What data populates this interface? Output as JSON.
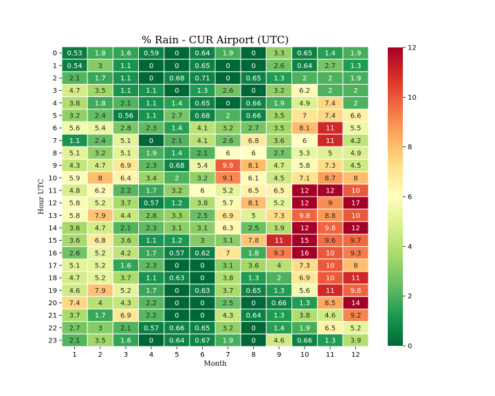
{
  "chart_data": {
    "type": "heatmap",
    "title": "% Rain - CUR Airport (UTC)",
    "xlabel": "Month",
    "ylabel": "Hour UTC",
    "x_categories": [
      "1",
      "2",
      "3",
      "4",
      "5",
      "6",
      "7",
      "8",
      "9",
      "10",
      "11",
      "12"
    ],
    "y_categories": [
      "0",
      "1",
      "2",
      "3",
      "4",
      "5",
      "6",
      "7",
      "8",
      "9",
      "10",
      "11",
      "12",
      "13",
      "14",
      "15",
      "16",
      "17",
      "18",
      "19",
      "20",
      "21",
      "22",
      "23"
    ],
    "color_range": [
      0,
      12
    ],
    "colorbar_ticks": [
      "0",
      "2",
      "4",
      "6",
      "8",
      "10",
      "12"
    ],
    "colormap": "RdYlGn_r",
    "cells": [
      [
        {
          "v": 0.53,
          "t": "0.53"
        },
        {
          "v": 1.8,
          "t": "1.8"
        },
        {
          "v": 1.6,
          "t": "1.6"
        },
        {
          "v": 0.59,
          "t": "0.59"
        },
        {
          "v": 0,
          "t": "0"
        },
        {
          "v": 0.64,
          "t": "0.64"
        },
        {
          "v": 1.9,
          "t": "1.9"
        },
        {
          "v": 0,
          "t": "0"
        },
        {
          "v": 3.3,
          "t": "3.3"
        },
        {
          "v": 0.65,
          "t": "0.65"
        },
        {
          "v": 1.4,
          "t": "1.4"
        },
        {
          "v": 1.9,
          "t": "1.9"
        }
      ],
      [
        {
          "v": 0.54,
          "t": "0.54"
        },
        {
          "v": 3,
          "t": "3"
        },
        {
          "v": 1.1,
          "t": "1.1"
        },
        {
          "v": 0,
          "t": "0"
        },
        {
          "v": 0,
          "t": "0"
        },
        {
          "v": 0.65,
          "t": "0.65"
        },
        {
          "v": 0,
          "t": "0"
        },
        {
          "v": 0,
          "t": "0"
        },
        {
          "v": 2.6,
          "t": "2.6"
        },
        {
          "v": 0.64,
          "t": "0.64"
        },
        {
          "v": 2.7,
          "t": "2.7"
        },
        {
          "v": 1.3,
          "t": "1.3"
        }
      ],
      [
        {
          "v": 2.1,
          "t": "2.1"
        },
        {
          "v": 1.7,
          "t": "1.7"
        },
        {
          "v": 1.1,
          "t": "1.1"
        },
        {
          "v": 0,
          "t": "0"
        },
        {
          "v": 0.68,
          "t": "0.68"
        },
        {
          "v": 0.71,
          "t": "0.71"
        },
        {
          "v": 0,
          "t": "0"
        },
        {
          "v": 0.65,
          "t": "0.65"
        },
        {
          "v": 1.3,
          "t": "1.3"
        },
        {
          "v": 2,
          "t": "2"
        },
        {
          "v": 2,
          "t": "2"
        },
        {
          "v": 1.9,
          "t": "1.9"
        }
      ],
      [
        {
          "v": 4.7,
          "t": "4.7"
        },
        {
          "v": 3.5,
          "t": "3.5"
        },
        {
          "v": 1.1,
          "t": "1.1"
        },
        {
          "v": 1.1,
          "t": "1.1"
        },
        {
          "v": 0,
          "t": "0"
        },
        {
          "v": 1.3,
          "t": "1.3"
        },
        {
          "v": 2.6,
          "t": "2.6"
        },
        {
          "v": 0,
          "t": "0"
        },
        {
          "v": 3.2,
          "t": "3.2"
        },
        {
          "v": 6.2,
          "t": "6.2"
        },
        {
          "v": 2,
          "t": "2"
        },
        {
          "v": 2,
          "t": "2"
        }
      ],
      [
        {
          "v": 3.8,
          "t": "3.8"
        },
        {
          "v": 1.8,
          "t": "1.8"
        },
        {
          "v": 2.1,
          "t": "2.1"
        },
        {
          "v": 1.1,
          "t": "1.1"
        },
        {
          "v": 1.4,
          "t": "1.4"
        },
        {
          "v": 0.65,
          "t": "0.65"
        },
        {
          "v": 0,
          "t": "0"
        },
        {
          "v": 0.66,
          "t": "0.66"
        },
        {
          "v": 1.9,
          "t": "1.9"
        },
        {
          "v": 4.9,
          "t": "4.9"
        },
        {
          "v": 7.4,
          "t": "7.4"
        },
        {
          "v": 2,
          "t": "2"
        }
      ],
      [
        {
          "v": 3.2,
          "t": "3.2"
        },
        {
          "v": 2.4,
          "t": "2.4"
        },
        {
          "v": 0.56,
          "t": "0.56"
        },
        {
          "v": 1.1,
          "t": "1.1"
        },
        {
          "v": 2.7,
          "t": "2.7"
        },
        {
          "v": 0.68,
          "t": "0.68"
        },
        {
          "v": 2,
          "t": "2"
        },
        {
          "v": 0.66,
          "t": "0.66"
        },
        {
          "v": 3.5,
          "t": "3.5"
        },
        {
          "v": 7,
          "t": "7"
        },
        {
          "v": 7.4,
          "t": "7.4"
        },
        {
          "v": 6.6,
          "t": "6.6"
        }
      ],
      [
        {
          "v": 5.6,
          "t": "5.6"
        },
        {
          "v": 5.4,
          "t": "5.4"
        },
        {
          "v": 2.8,
          "t": "2.8"
        },
        {
          "v": 2.3,
          "t": "2.3"
        },
        {
          "v": 1.4,
          "t": "1.4"
        },
        {
          "v": 4.1,
          "t": "4.1"
        },
        {
          "v": 3.2,
          "t": "3.2"
        },
        {
          "v": 2.7,
          "t": "2.7"
        },
        {
          "v": 3.5,
          "t": "3.5"
        },
        {
          "v": 8.1,
          "t": "8.1"
        },
        {
          "v": 11,
          "t": "11"
        },
        {
          "v": 5.5,
          "t": "5.5"
        }
      ],
      [
        {
          "v": 1.1,
          "t": "1.1"
        },
        {
          "v": 2.4,
          "t": "2.4"
        },
        {
          "v": 5.1,
          "t": "5.1"
        },
        {
          "v": 0,
          "t": "0"
        },
        {
          "v": 2.1,
          "t": "2.1"
        },
        {
          "v": 4.1,
          "t": "4.1"
        },
        {
          "v": 2.6,
          "t": "2.6"
        },
        {
          "v": 6.8,
          "t": "6.8"
        },
        {
          "v": 3.6,
          "t": "3.6"
        },
        {
          "v": 6,
          "t": "6"
        },
        {
          "v": 11,
          "t": "11"
        },
        {
          "v": 4.2,
          "t": "4.2"
        }
      ],
      [
        {
          "v": 5.1,
          "t": "5.1"
        },
        {
          "v": 3.2,
          "t": "3.2"
        },
        {
          "v": 5.1,
          "t": "5.1"
        },
        {
          "v": 1.9,
          "t": "1.9"
        },
        {
          "v": 1.4,
          "t": "1.4"
        },
        {
          "v": 2.1,
          "t": "2.1"
        },
        {
          "v": 6,
          "t": "6"
        },
        {
          "v": 6,
          "t": "6"
        },
        {
          "v": 2.7,
          "t": "2.7"
        },
        {
          "v": 5.3,
          "t": "5.3"
        },
        {
          "v": 5,
          "t": "5"
        },
        {
          "v": 4.9,
          "t": "4.9"
        }
      ],
      [
        {
          "v": 4.3,
          "t": "4.3"
        },
        {
          "v": 4.7,
          "t": "4.7"
        },
        {
          "v": 6.9,
          "t": "6.9"
        },
        {
          "v": 2.3,
          "t": "2.3"
        },
        {
          "v": 0.68,
          "t": "0.68"
        },
        {
          "v": 5.4,
          "t": "5.4"
        },
        {
          "v": 9.9,
          "t": "9.9"
        },
        {
          "v": 8.1,
          "t": "8.1"
        },
        {
          "v": 4.7,
          "t": "4.7"
        },
        {
          "v": 5.8,
          "t": "5.8"
        },
        {
          "v": 7.3,
          "t": "7.3"
        },
        {
          "v": 4.5,
          "t": "4.5"
        }
      ],
      [
        {
          "v": 5.9,
          "t": "5.9"
        },
        {
          "v": 8,
          "t": "8"
        },
        {
          "v": 6.4,
          "t": "6.4"
        },
        {
          "v": 3.4,
          "t": "3.4"
        },
        {
          "v": 2,
          "t": "2"
        },
        {
          "v": 3.2,
          "t": "3.2"
        },
        {
          "v": 9.1,
          "t": "9.1"
        },
        {
          "v": 6.1,
          "t": "6.1"
        },
        {
          "v": 4.5,
          "t": "4.5"
        },
        {
          "v": 7.1,
          "t": "7.1"
        },
        {
          "v": 8.7,
          "t": "8.7"
        },
        {
          "v": 8,
          "t": "8"
        }
      ],
      [
        {
          "v": 4.8,
          "t": "4.8"
        },
        {
          "v": 6.2,
          "t": "6.2"
        },
        {
          "v": 2.2,
          "t": "2.2"
        },
        {
          "v": 1.7,
          "t": "1.7"
        },
        {
          "v": 3.2,
          "t": "3.2"
        },
        {
          "v": 6,
          "t": "6"
        },
        {
          "v": 5.2,
          "t": "5.2"
        },
        {
          "v": 6.5,
          "t": "6.5"
        },
        {
          "v": 6.5,
          "t": "6.5"
        },
        {
          "v": 12,
          "t": "12"
        },
        {
          "v": 12,
          "t": "12"
        },
        {
          "v": 10,
          "t": "10"
        }
      ],
      [
        {
          "v": 5.8,
          "t": "5.8"
        },
        {
          "v": 5.2,
          "t": "5.2"
        },
        {
          "v": 3.7,
          "t": "3.7"
        },
        {
          "v": 0.57,
          "t": "0.57"
        },
        {
          "v": 1.2,
          "t": "1.2"
        },
        {
          "v": 3.8,
          "t": "3.8"
        },
        {
          "v": 5.7,
          "t": "5.7"
        },
        {
          "v": 8.1,
          "t": "8.1"
        },
        {
          "v": 5.2,
          "t": "5.2"
        },
        {
          "v": 12,
          "t": "12"
        },
        {
          "v": 9,
          "t": "9"
        },
        {
          "v": 17,
          "t": "17"
        }
      ],
      [
        {
          "v": 5.8,
          "t": "5.8"
        },
        {
          "v": 7.9,
          "t": "7.9"
        },
        {
          "v": 4.4,
          "t": "4.4"
        },
        {
          "v": 2.8,
          "t": "2.8"
        },
        {
          "v": 3.3,
          "t": "3.3"
        },
        {
          "v": 2.5,
          "t": "2.5"
        },
        {
          "v": 6.9,
          "t": "6.9"
        },
        {
          "v": 5,
          "t": "5"
        },
        {
          "v": 7.3,
          "t": "7.3"
        },
        {
          "v": 9.8,
          "t": "9.8"
        },
        {
          "v": 8.8,
          "t": "8.8"
        },
        {
          "v": 10,
          "t": "10"
        }
      ],
      [
        {
          "v": 3.6,
          "t": "3.6"
        },
        {
          "v": 4.7,
          "t": "4.7"
        },
        {
          "v": 2.1,
          "t": "2.1"
        },
        {
          "v": 2.3,
          "t": "2.3"
        },
        {
          "v": 3.1,
          "t": "3.1"
        },
        {
          "v": 3.1,
          "t": "3.1"
        },
        {
          "v": 6.3,
          "t": "6.3"
        },
        {
          "v": 2.5,
          "t": "2.5"
        },
        {
          "v": 3.9,
          "t": "3.9"
        },
        {
          "v": 12,
          "t": "12"
        },
        {
          "v": 9.8,
          "t": "9.8"
        },
        {
          "v": 12,
          "t": "12"
        }
      ],
      [
        {
          "v": 3.6,
          "t": "3.6"
        },
        {
          "v": 6.8,
          "t": "6.8"
        },
        {
          "v": 3.6,
          "t": "3.6"
        },
        {
          "v": 1.1,
          "t": "1.1"
        },
        {
          "v": 1.2,
          "t": "1.2"
        },
        {
          "v": 3,
          "t": "3"
        },
        {
          "v": 3.1,
          "t": "3.1"
        },
        {
          "v": 7.8,
          "t": "7.8"
        },
        {
          "v": 11,
          "t": "11"
        },
        {
          "v": 15,
          "t": "15"
        },
        {
          "v": 9.6,
          "t": "9.6"
        },
        {
          "v": 9.7,
          "t": "9.7"
        }
      ],
      [
        {
          "v": 2.6,
          "t": "2.6"
        },
        {
          "v": 5.2,
          "t": "5.2"
        },
        {
          "v": 4.2,
          "t": "4.2"
        },
        {
          "v": 1.7,
          "t": "1.7"
        },
        {
          "v": 0.57,
          "t": "0.57"
        },
        {
          "v": 0.62,
          "t": "0.62"
        },
        {
          "v": 7,
          "t": "7"
        },
        {
          "v": 1.8,
          "t": "1.8"
        },
        {
          "v": 9.3,
          "t": "9.3"
        },
        {
          "v": 16,
          "t": "16"
        },
        {
          "v": 10,
          "t": "10"
        },
        {
          "v": 9.3,
          "t": "9.3"
        }
      ],
      [
        {
          "v": 5.1,
          "t": "5.1"
        },
        {
          "v": 5.2,
          "t": "5.2"
        },
        {
          "v": 1.6,
          "t": "1.6"
        },
        {
          "v": 2.3,
          "t": "2.3"
        },
        {
          "v": 0,
          "t": "0"
        },
        {
          "v": 0,
          "t": "0"
        },
        {
          "v": 3.1,
          "t": "3.1"
        },
        {
          "v": 3.6,
          "t": "3.6"
        },
        {
          "v": 4,
          "t": "4"
        },
        {
          "v": 7.3,
          "t": "7.3"
        },
        {
          "v": 10,
          "t": "10"
        },
        {
          "v": 8,
          "t": "8"
        }
      ],
      [
        {
          "v": 4.7,
          "t": "4.7"
        },
        {
          "v": 5.2,
          "t": "5.2"
        },
        {
          "v": 3.7,
          "t": "3.7"
        },
        {
          "v": 1.1,
          "t": "1.1"
        },
        {
          "v": 0.63,
          "t": "0.63"
        },
        {
          "v": 0,
          "t": "0"
        },
        {
          "v": 3.8,
          "t": "3.8"
        },
        {
          "v": 1.3,
          "t": "1.3"
        },
        {
          "v": 2,
          "t": "2"
        },
        {
          "v": 6.9,
          "t": "6.9"
        },
        {
          "v": 10,
          "t": "10"
        },
        {
          "v": 11,
          "t": "11"
        }
      ],
      [
        {
          "v": 4.6,
          "t": "4.6"
        },
        {
          "v": 7.9,
          "t": "7.9"
        },
        {
          "v": 5.2,
          "t": "5.2"
        },
        {
          "v": 1.7,
          "t": "1.7"
        },
        {
          "v": 0,
          "t": "0"
        },
        {
          "v": 0.63,
          "t": "0.63"
        },
        {
          "v": 3.7,
          "t": "3.7"
        },
        {
          "v": 0.65,
          "t": "0.65"
        },
        {
          "v": 1.3,
          "t": "1.3"
        },
        {
          "v": 5.6,
          "t": "5.6"
        },
        {
          "v": 11,
          "t": "11"
        },
        {
          "v": 9.8,
          "t": "9.8"
        }
      ],
      [
        {
          "v": 7.4,
          "t": "7.4"
        },
        {
          "v": 4,
          "t": "4"
        },
        {
          "v": 4.3,
          "t": "4.3"
        },
        {
          "v": 2.2,
          "t": "2.2"
        },
        {
          "v": 0,
          "t": "0"
        },
        {
          "v": 0,
          "t": "0"
        },
        {
          "v": 2.5,
          "t": "2.5"
        },
        {
          "v": 0,
          "t": "0"
        },
        {
          "v": 0.66,
          "t": "0.66"
        },
        {
          "v": 1.3,
          "t": "1.3"
        },
        {
          "v": 8.5,
          "t": "8.5"
        },
        {
          "v": 14,
          "t": "14"
        }
      ],
      [
        {
          "v": 3.7,
          "t": "3.7"
        },
        {
          "v": 1.7,
          "t": "1.7"
        },
        {
          "v": 6.9,
          "t": "6.9"
        },
        {
          "v": 2.2,
          "t": "2.2"
        },
        {
          "v": 0,
          "t": "0"
        },
        {
          "v": 0,
          "t": "0"
        },
        {
          "v": 4.3,
          "t": "4.3"
        },
        {
          "v": 0.64,
          "t": "0.64"
        },
        {
          "v": 1.3,
          "t": "1.3"
        },
        {
          "v": 3.8,
          "t": "3.8"
        },
        {
          "v": 4.6,
          "t": "4.6"
        },
        {
          "v": 9.2,
          "t": "9.2"
        }
      ],
      [
        {
          "v": 2.7,
          "t": "2.7"
        },
        {
          "v": 3,
          "t": "3"
        },
        {
          "v": 2.1,
          "t": "2.1"
        },
        {
          "v": 0.57,
          "t": "0.57"
        },
        {
          "v": 0.66,
          "t": "0.66"
        },
        {
          "v": 0.65,
          "t": "0.65"
        },
        {
          "v": 3.2,
          "t": "3.2"
        },
        {
          "v": 0,
          "t": "0"
        },
        {
          "v": 1.4,
          "t": "1.4"
        },
        {
          "v": 1.9,
          "t": "1.9"
        },
        {
          "v": 6.5,
          "t": "6.5"
        },
        {
          "v": 5.2,
          "t": "5.2"
        }
      ],
      [
        {
          "v": 2.1,
          "t": "2.1"
        },
        {
          "v": 3.5,
          "t": "3.5"
        },
        {
          "v": 1.6,
          "t": "1.6"
        },
        {
          "v": 0,
          "t": "0"
        },
        {
          "v": 0.64,
          "t": "0.64"
        },
        {
          "v": 0.67,
          "t": "0.67"
        },
        {
          "v": 1.9,
          "t": "1.9"
        },
        {
          "v": 0,
          "t": "0"
        },
        {
          "v": 4.6,
          "t": "4.6"
        },
        {
          "v": 0.66,
          "t": "0.66"
        },
        {
          "v": 1.3,
          "t": "1.3"
        },
        {
          "v": 3.9,
          "t": "3.9"
        }
      ]
    ]
  }
}
